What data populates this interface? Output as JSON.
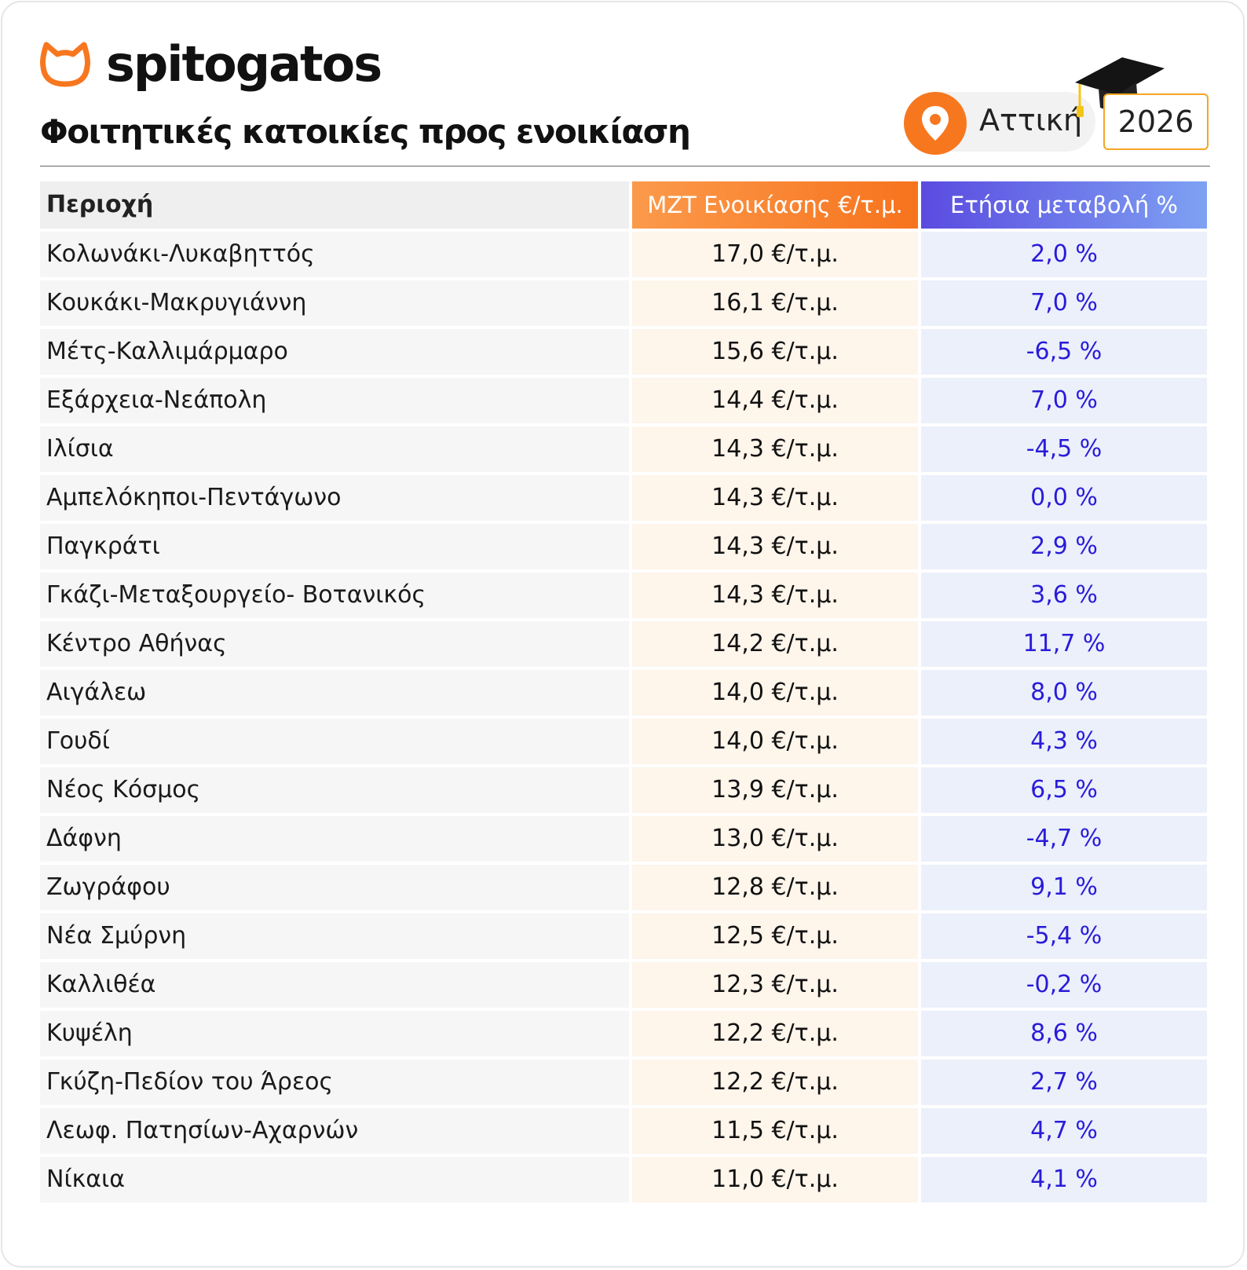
{
  "brand": {
    "name": "spitogatos",
    "accent_color": "#F7771F",
    "logo_icon": "cat-outline-icon"
  },
  "header": {
    "title": "Φοιτητικές κατοικίες προς ενοικίαση",
    "region": "Αττική",
    "year": "2026",
    "region_icon": "location-pin-icon",
    "decoration_icon": "graduation-cap-icon"
  },
  "table": {
    "columns": [
      "Περιοχή",
      "ΜΖΤ Ενοικίασης €/τ.μ.",
      "Ετήσια μεταβολή %"
    ],
    "header_colors": {
      "area": "#EFEFEF",
      "price": "#F7771F",
      "change": "#5A4BE0"
    },
    "rows": [
      {
        "area": "Κολωνάκι-Λυκαβηττός",
        "price": "17,0 €/τ.μ.",
        "change": "2,0 %"
      },
      {
        "area": "Κουκάκι-Μακρυγιάννη",
        "price": "16,1 €/τ.μ.",
        "change": "7,0 %"
      },
      {
        "area": "Μέτς-Καλλιμάρμαρο",
        "price": "15,6 €/τ.μ.",
        "change": "-6,5 %"
      },
      {
        "area": "Εξάρχεια-Νεάπολη",
        "price": "14,4 €/τ.μ.",
        "change": "7,0 %"
      },
      {
        "area": "Ιλίσια",
        "price": "14,3 €/τ.μ.",
        "change": "-4,5 %"
      },
      {
        "area": "Αμπελόκηποι-Πεντάγωνο",
        "price": "14,3 €/τ.μ.",
        "change": "0,0 %"
      },
      {
        "area": "Παγκράτι",
        "price": "14,3 €/τ.μ.",
        "change": "2,9 %"
      },
      {
        "area": "Γκάζι-Μεταξουργείο- Βοτανικός",
        "price": "14,3 €/τ.μ.",
        "change": "3,6 %"
      },
      {
        "area": "Κέντρο Αθήνας",
        "price": "14,2 €/τ.μ.",
        "change": "11,7 %"
      },
      {
        "area": "Αιγάλεω",
        "price": "14,0 €/τ.μ.",
        "change": "8,0 %"
      },
      {
        "area": "Γουδί",
        "price": "14,0 €/τ.μ.",
        "change": "4,3 %"
      },
      {
        "area": "Νέος Κόσμος",
        "price": "13,9 €/τ.μ.",
        "change": "6,5 %"
      },
      {
        "area": "Δάφνη",
        "price": "13,0 €/τ.μ.",
        "change": "-4,7 %"
      },
      {
        "area": "Ζωγράφου",
        "price": "12,8 €/τ.μ.",
        "change": "9,1 %"
      },
      {
        "area": "Νέα Σμύρνη",
        "price": "12,5 €/τ.μ.",
        "change": "-5,4 %"
      },
      {
        "area": "Καλλιθέα",
        "price": "12,3 €/τ.μ.",
        "change": "-0,2 %"
      },
      {
        "area": "Κυψέλη",
        "price": "12,2 €/τ.μ.",
        "change": "8,6 %"
      },
      {
        "area": "Γκύζη-Πεδίον του Άρεος",
        "price": "12,2 €/τ.μ.",
        "change": "2,7 %"
      },
      {
        "area": "Λεωφ. Πατησίων-Αχαρνών",
        "price": "11,5 €/τ.μ.",
        "change": "4,7 %"
      },
      {
        "area": "Νίκαια",
        "price": "11,0 €/τ.μ.",
        "change": "4,1 %"
      }
    ]
  }
}
